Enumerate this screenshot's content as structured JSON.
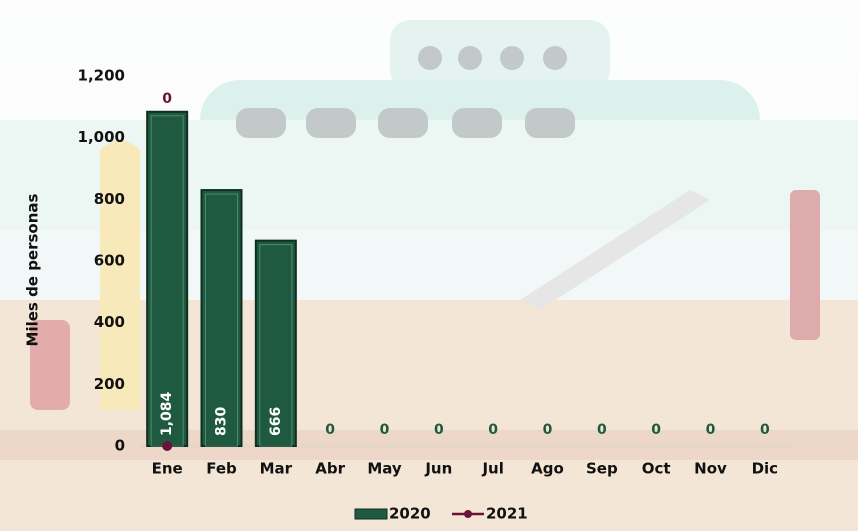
{
  "chart_data": {
    "type": "bar",
    "y_label": "Miles de personas",
    "categories": [
      "Ene",
      "Feb",
      "Mar",
      "Abr",
      "May",
      "Jun",
      "Jul",
      "Ago",
      "Sep",
      "Oct",
      "Nov",
      "Dic"
    ],
    "series": [
      {
        "name": "2020",
        "type": "bar",
        "color": "#1f5a40",
        "values": [
          1084,
          830,
          666,
          0,
          0,
          0,
          0,
          0,
          0,
          0,
          0,
          0
        ],
        "value_labels": [
          "1,084",
          "830",
          "666",
          "0",
          "0",
          "0",
          "0",
          "0",
          "0",
          "0",
          "0",
          "0"
        ]
      },
      {
        "name": "2021",
        "type": "line",
        "color": "#6b1238",
        "values": [
          0,
          null,
          null,
          null,
          null,
          null,
          null,
          null,
          null,
          null,
          null,
          null
        ]
      }
    ],
    "ylim": [
      0,
      1200
    ],
    "yticks": [
      0,
      200,
      400,
      600,
      800,
      {
        "value": 1000,
        "label": "1,000"
      },
      {
        "value": 1200,
        "label": "1,200"
      }
    ],
    "legend": "bottom"
  }
}
